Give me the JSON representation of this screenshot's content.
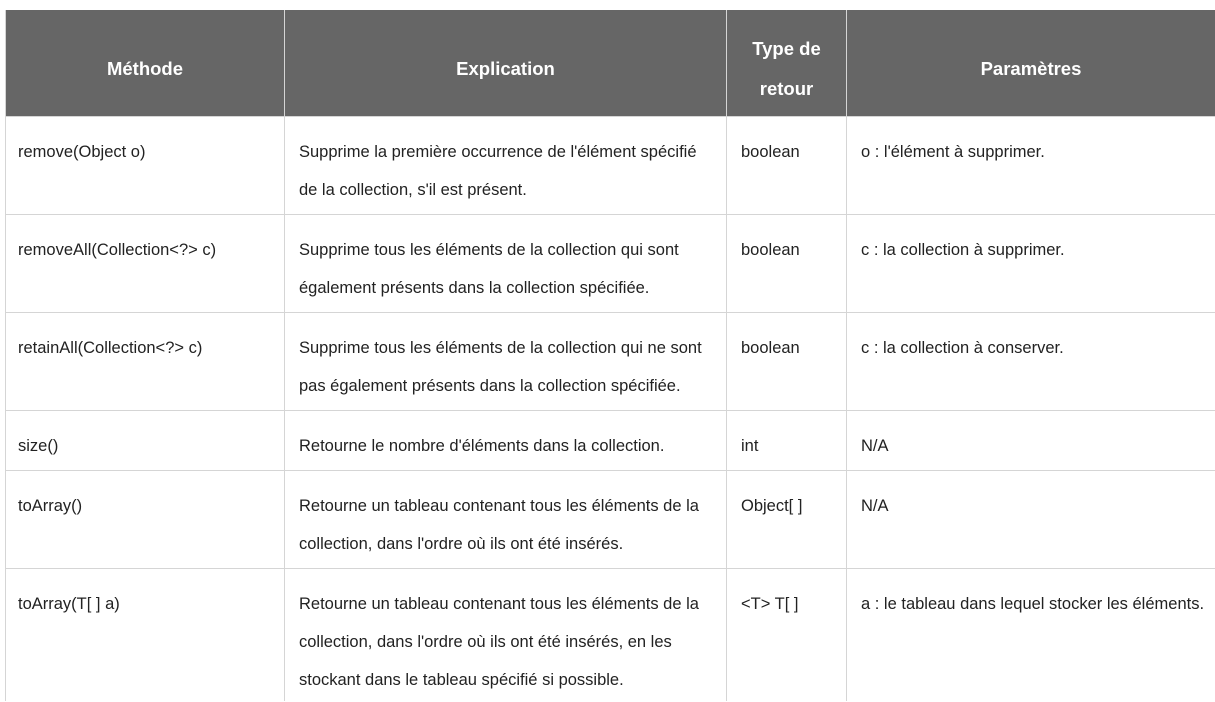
{
  "table": {
    "headers": [
      "Méthode",
      "Explication",
      "Type de retour",
      "Paramètres"
    ],
    "rows": [
      {
        "methode": "remove(Object o)",
        "explication": [
          "Supprime la première occurrence de l'élément spécifié",
          "de la collection, s'il est présent."
        ],
        "type_retour": "boolean",
        "parametres": "o : l'élément à supprimer."
      },
      {
        "methode": "removeAll(Collection<?> c)",
        "explication": [
          "Supprime tous les éléments de la collection qui sont",
          "également présents dans la collection spécifiée."
        ],
        "type_retour": "boolean",
        "parametres": "c : la collection à supprimer."
      },
      {
        "methode": "retainAll(Collection<?> c)",
        "explication": [
          "Supprime tous les éléments de la collection qui ne sont",
          "pas également présents dans la collection spécifiée."
        ],
        "type_retour": "boolean",
        "parametres": "c : la collection à conserver."
      },
      {
        "methode": "size()",
        "explication": [
          "Retourne le nombre d'éléments dans la collection."
        ],
        "type_retour": "int",
        "parametres": "N/A"
      },
      {
        "methode": "toArray()",
        "explication": [
          "Retourne un tableau contenant tous les éléments de la",
          "collection, dans l'ordre où ils ont été insérés."
        ],
        "type_retour": "Object[ ]",
        "parametres": "N/A"
      },
      {
        "methode": "toArray(T[ ] a)",
        "explication": [
          "Retourne un tableau contenant tous les éléments de la",
          "collection, dans l'ordre où ils ont été insérés, en les",
          "stockant dans le tableau spécifié si possible."
        ],
        "type_retour": "<T> T[ ]",
        "parametres": "a : le tableau dans lequel stocker les éléments."
      }
    ]
  },
  "colors": {
    "header_background": "#666666",
    "header_text": "#ffffff",
    "border": "#d5d5d5",
    "text": "#222222"
  }
}
